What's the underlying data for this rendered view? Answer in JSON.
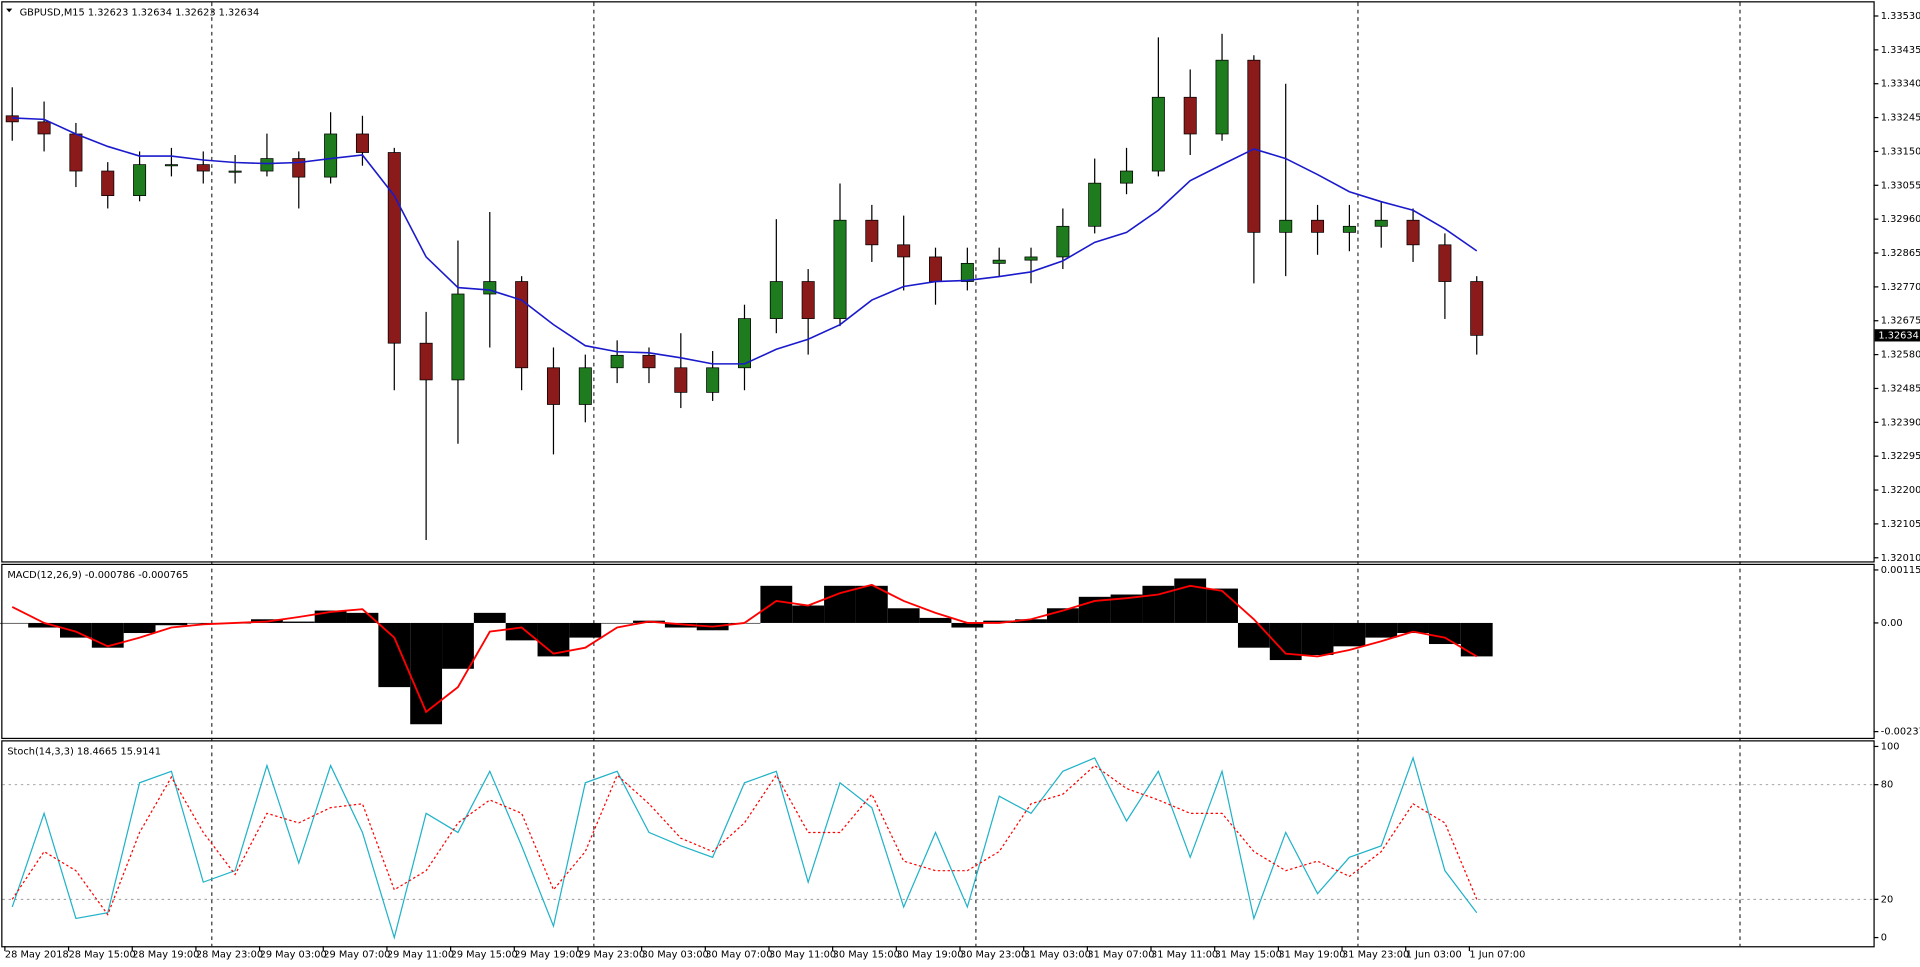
{
  "chart_data": [
    {
      "type": "candlestick",
      "title": "GBPUSD,M15  1.32623 1.32634 1.32623 1.32634",
      "open": [
        1.3325,
        1.33233,
        1.33199,
        1.33095,
        1.33026,
        1.33113,
        1.33113,
        1.33095,
        1.33095,
        1.3313,
        1.33078,
        1.33199,
        1.33147,
        1.32612,
        1.32509,
        1.3275,
        1.32785,
        1.32543,
        1.3244,
        1.32543,
        1.32578,
        1.32543,
        1.32474,
        1.32543,
        1.32681,
        1.32785,
        1.32681,
        1.32957,
        1.32888,
        1.32854,
        1.32785,
        1.32836,
        1.32845,
        1.32854,
        1.3294,
        1.33061,
        1.33095,
        1.33302,
        1.33199,
        1.33406,
        1.32923,
        1.32957,
        1.32923,
        1.3294,
        1.32957,
        1.32888,
        1.32785
      ],
      "high": [
        1.3333,
        1.3329,
        1.3323,
        1.3312,
        1.3315,
        1.3316,
        1.3315,
        1.3314,
        1.332,
        1.3315,
        1.3326,
        1.3325,
        1.3316,
        1.327,
        1.329,
        1.3298,
        1.328,
        1.326,
        1.3258,
        1.3262,
        1.326,
        1.3264,
        1.3259,
        1.3272,
        1.3296,
        1.3282,
        1.3306,
        1.33,
        1.3297,
        1.3288,
        1.3288,
        1.3288,
        1.3288,
        1.3299,
        1.3313,
        1.3316,
        1.3347,
        1.3338,
        1.3348,
        1.3342,
        1.3334,
        1.33,
        1.33,
        1.3301,
        1.3299,
        1.3292,
        1.328
      ],
      "low": [
        1.3318,
        1.3315,
        1.3305,
        1.3299,
        1.3301,
        1.3308,
        1.3306,
        1.3306,
        1.3308,
        1.3299,
        1.3306,
        1.3311,
        1.3248,
        1.3206,
        1.3233,
        1.326,
        1.3248,
        1.323,
        1.3239,
        1.325,
        1.325,
        1.3243,
        1.3245,
        1.3248,
        1.3264,
        1.3258,
        1.3266,
        1.3284,
        1.3276,
        1.3272,
        1.3276,
        1.328,
        1.3278,
        1.3282,
        1.3292,
        1.3303,
        1.3308,
        1.3314,
        1.3318,
        1.3278,
        1.328,
        1.3286,
        1.3287,
        1.3288,
        1.3284,
        1.3268,
        1.3258
      ],
      "close": [
        1.33233,
        1.33199,
        1.33095,
        1.33026,
        1.33113,
        1.33113,
        1.33095,
        1.33095,
        1.3313,
        1.33078,
        1.33199,
        1.33147,
        1.32612,
        1.32509,
        1.3275,
        1.32785,
        1.32543,
        1.3244,
        1.32543,
        1.32578,
        1.32543,
        1.32474,
        1.32543,
        1.32681,
        1.32785,
        1.32681,
        1.32957,
        1.32888,
        1.32854,
        1.32785,
        1.32836,
        1.32845,
        1.32854,
        1.3294,
        1.33061,
        1.33095,
        1.33302,
        1.33199,
        1.33406,
        1.32923,
        1.32957,
        1.32923,
        1.3294,
        1.32957,
        1.32888,
        1.32785,
        1.32634
      ],
      "colors": {
        "up": "#1e7b1e",
        "down": "#8b1a1a",
        "wick": "#000000"
      },
      "overlay": {
        "color": "#1a1acc",
        "values": [
          1.33244,
          1.3324,
          1.33199,
          1.33164,
          1.33137,
          1.33137,
          1.33126,
          1.33119,
          1.33116,
          1.33119,
          1.3313,
          1.3314,
          1.33026,
          1.32854,
          1.32768,
          1.32761,
          1.32733,
          1.32664,
          1.32605,
          1.32588,
          1.32585,
          1.32571,
          1.32554,
          1.32554,
          1.32595,
          1.32623,
          1.32664,
          1.32733,
          1.32771,
          1.32785,
          1.32788,
          1.32799,
          1.32812,
          1.32843,
          1.32895,
          1.32923,
          1.32985,
          1.33068,
          1.33113,
          1.33157,
          1.3313,
          1.33085,
          1.33037,
          1.33009,
          1.32985,
          1.32933,
          1.32871
        ]
      },
      "ylim": [
        1.32,
        1.33568
      ],
      "yticks": [
        {
          "value": 1.3353,
          "label": "1.33530"
        },
        {
          "value": 1.33435,
          "label": "1.33435"
        },
        {
          "value": 1.3334,
          "label": "1.33340"
        },
        {
          "value": 1.33245,
          "label": "1.33245"
        },
        {
          "value": 1.3315,
          "label": "1.33150"
        },
        {
          "value": 1.33055,
          "label": "1.33055"
        },
        {
          "value": 1.3296,
          "label": "1.32960"
        },
        {
          "value": 1.32865,
          "label": "1.32865"
        },
        {
          "value": 1.3277,
          "label": "1.32770"
        },
        {
          "value": 1.32675,
          "label": "1.32675"
        },
        {
          "value": 1.3258,
          "label": "1.32580"
        },
        {
          "value": 1.32485,
          "label": "1.32485"
        },
        {
          "value": 1.3239,
          "label": "1.32390"
        },
        {
          "value": 1.32295,
          "label": "1.32295"
        },
        {
          "value": 1.322,
          "label": "1.32200"
        },
        {
          "value": 1.32105,
          "label": "1.32105"
        },
        {
          "value": 1.3201,
          "label": "1.32010"
        }
      ],
      "current_price": {
        "value": 1.32634,
        "label": "1.32634"
      }
    },
    {
      "type": "macd",
      "title": "MACD(12,26,9) -0.000786 -0.000765",
      "histogram": {
        "color": "#000000",
        "values": [
          0,
          -0.0001,
          -0.00032,
          -0.00054,
          -0.00022,
          -5e-05,
          0,
          0,
          8e-05,
          3e-05,
          0.00027,
          0.00022,
          -0.0014,
          -0.00221,
          -0.001,
          0.00022,
          -0.00038,
          -0.00073,
          -0.00032,
          0,
          5e-05,
          -0.0001,
          -0.00016,
          0,
          0.00081,
          0.00038,
          0.00081,
          0.00081,
          0.00032,
          0.00011,
          -0.0001,
          5e-05,
          8e-05,
          0.00032,
          0.00057,
          0.00062,
          0.00081,
          0.00097,
          0.00075,
          -0.00054,
          -0.00081,
          -0.0007,
          -0.00051,
          -0.00032,
          -0.00022,
          -0.00046,
          -0.00073
        ]
      },
      "signal": {
        "color": "#ff0000",
        "values": [
          0.00035,
          0,
          -0.00019,
          -0.00051,
          -0.00032,
          -0.0001,
          -3e-05,
          0,
          3e-05,
          0.00013,
          0.00024,
          0.0003,
          -0.00032,
          -0.00194,
          -0.0014,
          -0.00019,
          -0.0001,
          -0.00067,
          -0.00054,
          -0.0001,
          3e-05,
          -3e-05,
          -8e-05,
          0,
          0.00048,
          0.00038,
          0.00065,
          0.00083,
          0.00048,
          0.00022,
          0,
          0,
          8e-05,
          0.00027,
          0.00048,
          0.00054,
          0.00062,
          0.00081,
          0.0007,
          8e-05,
          -0.00067,
          -0.00073,
          -0.00059,
          -0.0004,
          -0.00019,
          -0.00032,
          -0.00073
        ]
      },
      "ylim": [
        -0.002506,
        0.001264
      ],
      "yticks": [
        0.001156,
        {
          "value": 0,
          "label": "0.00"
        },
        -0.002371
      ]
    },
    {
      "type": "stochastic",
      "title": "Stoch(14,3,3) 18.4665 15.9141",
      "main": {
        "color": "#20b2c8",
        "values": [
          16,
          65,
          10,
          13,
          81,
          87,
          29,
          35,
          90,
          39,
          90,
          55,
          0,
          65,
          55,
          87,
          48,
          6,
          81,
          87,
          55,
          48,
          42,
          81,
          87,
          29,
          81,
          68,
          16,
          55,
          16,
          74,
          65,
          87,
          94,
          61,
          87,
          42,
          87,
          10,
          55,
          23,
          42,
          48,
          94,
          35,
          13
        ]
      },
      "signal": {
        "color": "#ff0000",
        "dashed": true,
        "values": [
          20,
          45,
          35,
          12,
          55,
          84,
          55,
          33,
          65,
          60,
          68,
          70,
          25,
          35,
          60,
          72,
          65,
          25,
          45,
          85,
          70,
          52,
          45,
          60,
          85,
          55,
          55,
          75,
          40,
          35,
          35,
          45,
          70,
          75,
          90,
          78,
          72,
          65,
          65,
          45,
          35,
          40,
          32,
          45,
          70,
          60,
          20
        ]
      },
      "ylim": [
        -4.5,
        102.6
      ],
      "yticks": [
        0,
        20,
        80,
        100
      ],
      "levels": [
        20,
        80
      ],
      "x_labels": [
        "28 May 2018",
        "28 May 15:00",
        "28 May 19:00",
        "28 May 23:00",
        "29 May 03:00",
        "29 May 07:00",
        "29 May 11:00",
        "29 May 15:00",
        "29 May 19:00",
        "29 May 23:00",
        "30 May 03:00",
        "30 May 07:00",
        "30 May 11:00",
        "30 May 15:00",
        "30 May 19:00",
        "30 May 23:00",
        "31 May 03:00",
        "31 May 07:00",
        "31 May 11:00",
        "31 May 15:00",
        "31 May 19:00",
        "31 May 23:00",
        "1 Jun 03:00",
        "1 Jun 07:00"
      ]
    }
  ]
}
